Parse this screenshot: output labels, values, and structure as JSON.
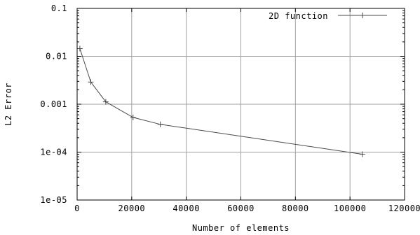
{
  "chart_data": {
    "type": "line",
    "title": "",
    "xlabel": "Number of elements",
    "ylabel": "L2 Error",
    "xlim": [
      0,
      120000
    ],
    "ylim": [
      1e-05,
      0.1
    ],
    "yscale": "log",
    "grid": true,
    "legend_position": "top-right",
    "x_ticks": [
      0,
      20000,
      40000,
      60000,
      80000,
      100000,
      120000
    ],
    "x_tick_labels": [
      "0",
      "20000",
      "40000",
      "60000",
      "80000",
      "100000",
      "120000"
    ],
    "y_ticks": [
      1e-05,
      0.0001,
      0.001,
      0.01,
      0.1
    ],
    "y_tick_labels": [
      "1e-05",
      "1e-04",
      "0.001",
      "0.01",
      "0.1"
    ],
    "series": [
      {
        "name": "2D function",
        "color": "#4a4a4a",
        "marker": "plus",
        "x": [
          1000,
          5000,
          10500,
          20500,
          30500,
          104500
        ],
        "y": [
          0.0145,
          0.0029,
          0.00112,
          0.00053,
          0.00038,
          9.05e-05
        ]
      }
    ]
  }
}
